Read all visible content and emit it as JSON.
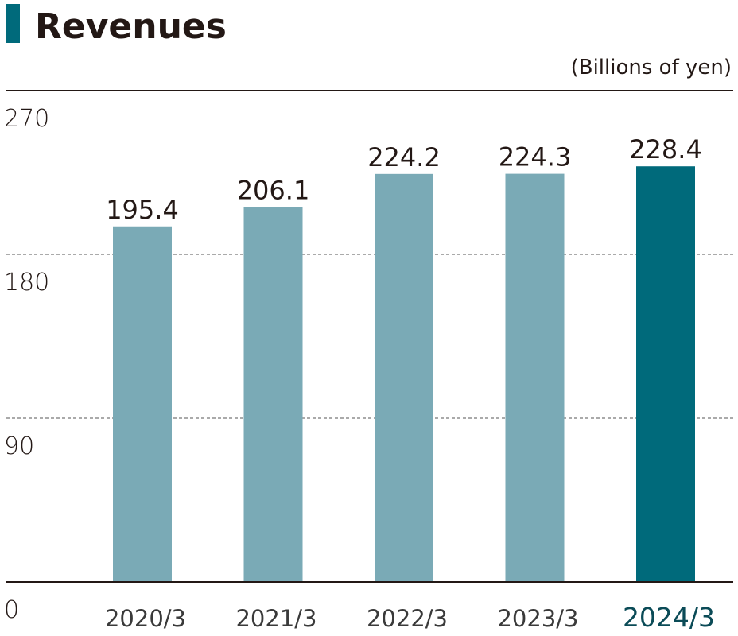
{
  "title": "Revenues",
  "unit": "(Billions of yen)",
  "colors": {
    "accent": "#006a7b",
    "bar": "#7aaab6",
    "bar_highlight": "#006a7b",
    "axis": "#231815",
    "grid": "#555555"
  },
  "chart_data": {
    "type": "bar",
    "title": "Revenues",
    "ylabel": "(Billions of yen)",
    "xlabel": "",
    "categories": [
      "2020/3",
      "2021/3",
      "2022/3",
      "2023/3",
      "2024/3"
    ],
    "values": [
      195.4,
      206.1,
      224.2,
      224.3,
      228.4
    ],
    "value_labels": [
      "195.4",
      "206.1",
      "224.2",
      "224.3",
      "228.4"
    ],
    "highlight_category": "2024/3",
    "ylim": [
      0,
      270
    ],
    "yticks": [
      0,
      90,
      180,
      270
    ],
    "grid": "dashed at 90 and 180",
    "legend": "none"
  }
}
